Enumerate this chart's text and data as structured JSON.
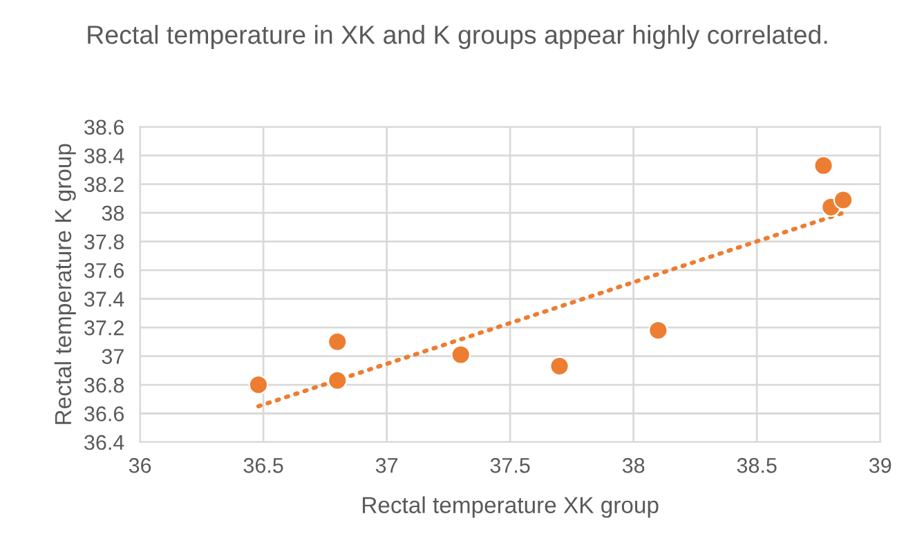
{
  "chart_data": {
    "type": "scatter",
    "title": "Rectal temperature in XK and K groups appear highly correlated.",
    "xlabel": "Rectal temperature XK group",
    "ylabel": "Rectal temperature K group",
    "series": [
      {
        "color": "#ed7d31",
        "x": [
          36.48,
          36.8,
          36.8,
          37.3,
          37.7,
          38.1,
          38.77,
          38.8,
          38.85
        ],
        "values": [
          36.8,
          37.1,
          36.83,
          37.01,
          36.93,
          37.18,
          38.33,
          38.04,
          38.09
        ],
        "marker": "circle"
      },
      {
        "type": "line",
        "color": "#ed7d31",
        "x": [
          36.48,
          38.85
        ],
        "values": [
          36.65,
          38.0
        ],
        "line_style": "dotted",
        "marker": "none"
      }
    ],
    "xlim": [
      36,
      39
    ],
    "xticks": [
      36,
      36.5,
      37,
      37.5,
      38,
      38.5,
      39
    ],
    "ylim": [
      36.4,
      38.6
    ],
    "yticks": [
      36.4,
      36.6,
      36.8,
      37,
      37.2,
      37.4,
      37.6,
      37.8,
      38,
      38.2,
      38.4,
      38.6
    ],
    "grid": true,
    "legend": false
  }
}
